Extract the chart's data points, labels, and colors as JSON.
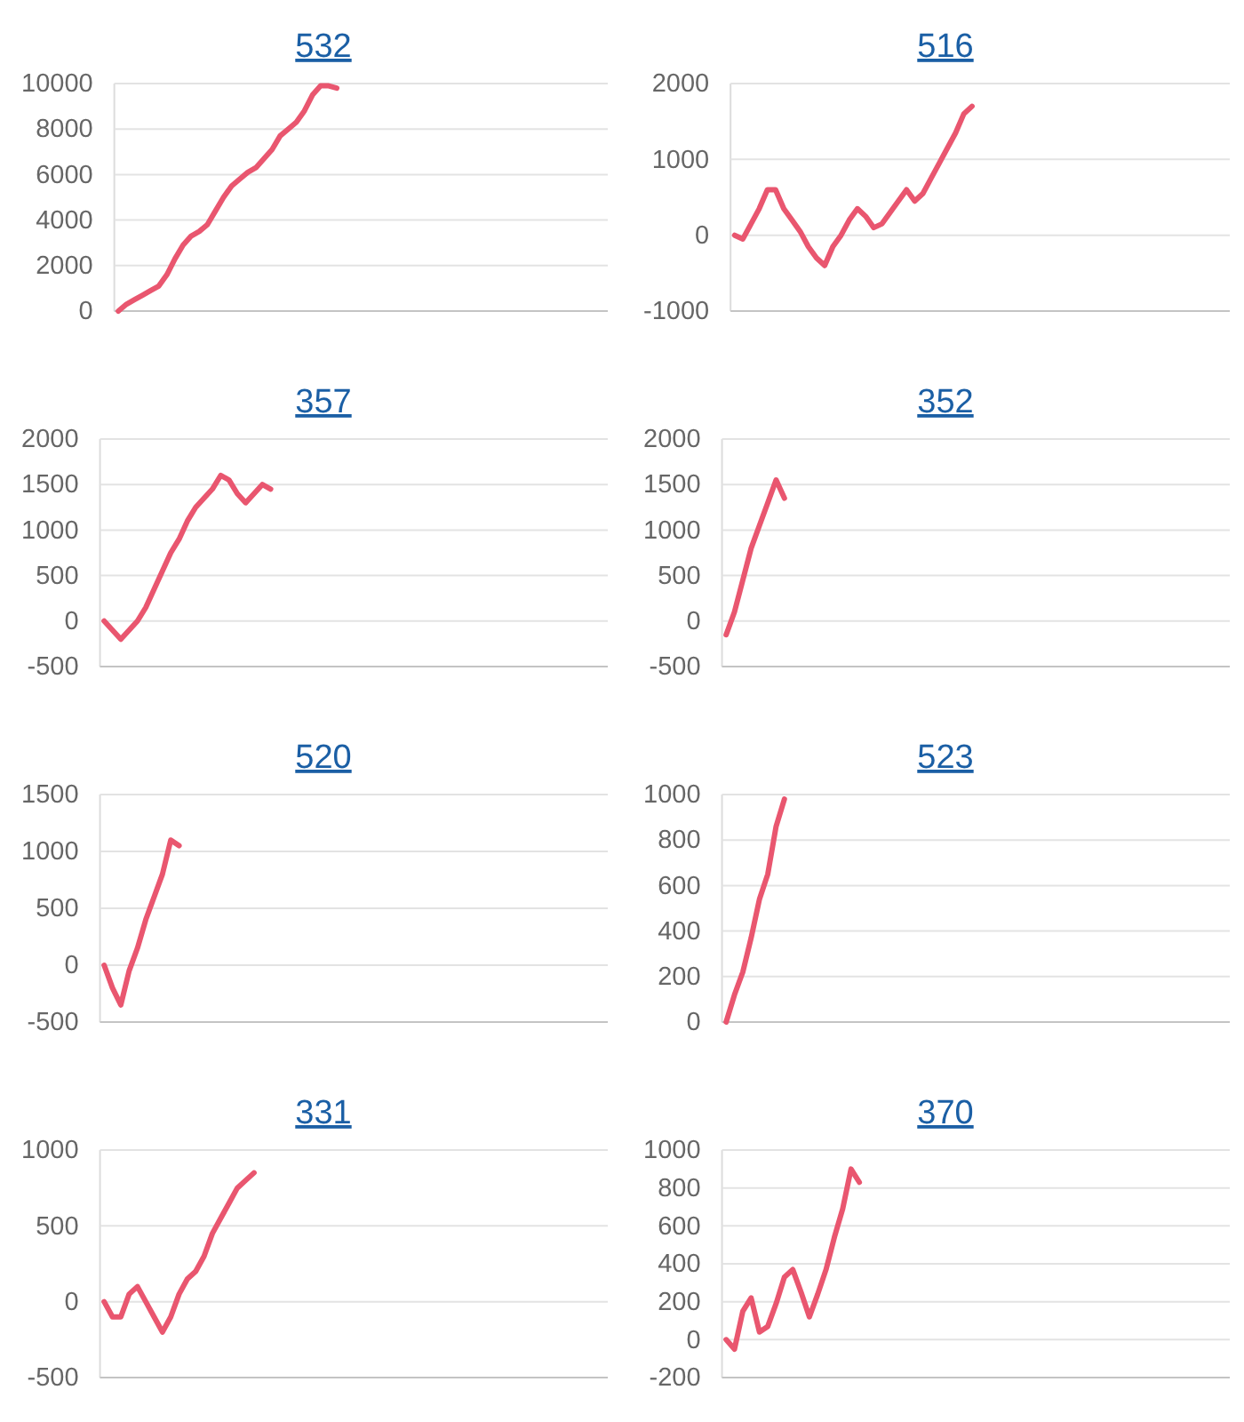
{
  "chart_data": [
    {
      "type": "line",
      "title": "532",
      "categories": [
        null,
        null,
        null,
        null,
        null,
        null,
        null,
        null,
        null,
        null,
        null,
        null,
        null,
        null,
        null,
        null,
        null,
        null,
        null,
        null,
        null,
        null,
        null,
        null,
        null,
        null,
        null,
        null,
        null,
        null,
        null,
        null,
        null,
        null,
        null,
        null,
        null,
        null,
        null,
        null,
        null,
        null,
        null,
        null,
        null,
        null,
        null,
        null,
        null,
        null,
        null,
        null,
        null,
        null,
        null,
        null,
        null,
        null,
        null,
        null,
        null
      ],
      "values": [
        0,
        300,
        500,
        700,
        900,
        1100,
        1600,
        2300,
        2900,
        3300,
        3500,
        3800,
        4400,
        5000,
        5500,
        5800,
        6100,
        6300,
        6700,
        7100,
        7700,
        8000,
        8300,
        8800,
        9500,
        9900,
        9900,
        9800,
        null,
        null,
        null,
        null,
        null,
        null,
        null,
        null,
        null,
        null,
        null,
        null,
        null,
        null,
        null,
        null,
        null,
        null,
        null,
        null,
        null,
        null,
        null,
        null,
        null,
        null,
        null,
        null,
        null,
        null,
        null,
        null,
        null
      ],
      "color": "#e9566f",
      "ylim": [
        0,
        10000
      ],
      "yticks": [
        0,
        2000,
        4000,
        6000,
        8000,
        10000
      ],
      "grid": "y",
      "tick_labels": "y"
    },
    {
      "type": "line",
      "title": "516",
      "categories": [
        null,
        null,
        null,
        null,
        null,
        null,
        null,
        null,
        null,
        null,
        null,
        null,
        null,
        null,
        null,
        null,
        null,
        null,
        null,
        null,
        null,
        null,
        null,
        null,
        null,
        null,
        null,
        null,
        null,
        null,
        null,
        null,
        null,
        null,
        null,
        null,
        null,
        null,
        null,
        null,
        null,
        null,
        null,
        null,
        null,
        null,
        null,
        null,
        null,
        null,
        null,
        null,
        null,
        null,
        null,
        null,
        null,
        null,
        null,
        null,
        null
      ],
      "values": [
        0,
        -50,
        150,
        350,
        600,
        600,
        350,
        200,
        50,
        -150,
        -300,
        -400,
        -150,
        0,
        200,
        350,
        250,
        100,
        150,
        300,
        450,
        600,
        450,
        550,
        750,
        950,
        1150,
        1350,
        1600,
        1700,
        null,
        null,
        null,
        null,
        null,
        null,
        null,
        null,
        null,
        null,
        null,
        null,
        null,
        null,
        null,
        null,
        null,
        null,
        null,
        null,
        null,
        null,
        null,
        null,
        null,
        null,
        null,
        null,
        null,
        null,
        null
      ],
      "color": "#e9566f",
      "ylim": [
        -1000,
        2000
      ],
      "yticks": [
        -1000,
        0,
        1000,
        2000
      ],
      "grid": "y",
      "tick_labels": "y"
    },
    {
      "type": "line",
      "title": "357",
      "categories": [
        null,
        null,
        null,
        null,
        null,
        null,
        null,
        null,
        null,
        null,
        null,
        null,
        null,
        null,
        null,
        null,
        null,
        null,
        null,
        null,
        null,
        null,
        null,
        null,
        null,
        null,
        null,
        null,
        null,
        null,
        null,
        null,
        null,
        null,
        null,
        null,
        null,
        null,
        null,
        null,
        null,
        null,
        null,
        null,
        null,
        null,
        null,
        null,
        null,
        null,
        null,
        null,
        null,
        null,
        null,
        null,
        null,
        null,
        null,
        null,
        null
      ],
      "values": [
        0,
        -100,
        -200,
        -100,
        0,
        150,
        350,
        550,
        750,
        900,
        1100,
        1250,
        1350,
        1450,
        1600,
        1550,
        1400,
        1300,
        1400,
        1500,
        1450,
        null,
        null,
        null,
        null,
        null,
        null,
        null,
        null,
        null,
        null,
        null,
        null,
        null,
        null,
        null,
        null,
        null,
        null,
        null,
        null,
        null,
        null,
        null,
        null,
        null,
        null,
        null,
        null,
        null,
        null,
        null,
        null,
        null,
        null,
        null,
        null,
        null,
        null,
        null,
        null
      ],
      "color": "#e9566f",
      "ylim": [
        -500,
        2000
      ],
      "yticks": [
        -500,
        0,
        500,
        1000,
        1500,
        2000
      ],
      "grid": "y",
      "tick_labels": "y"
    },
    {
      "type": "line",
      "title": "352",
      "categories": [
        null,
        null,
        null,
        null,
        null,
        null,
        null,
        null,
        null,
        null,
        null,
        null,
        null,
        null,
        null,
        null,
        null,
        null,
        null,
        null,
        null,
        null,
        null,
        null,
        null,
        null,
        null,
        null,
        null,
        null,
        null,
        null,
        null,
        null,
        null,
        null,
        null,
        null,
        null,
        null,
        null,
        null,
        null,
        null,
        null,
        null,
        null,
        null,
        null,
        null,
        null,
        null,
        null,
        null,
        null,
        null,
        null,
        null,
        null,
        null,
        null
      ],
      "values": [
        -150,
        100,
        450,
        800,
        1050,
        1300,
        1550,
        1350,
        null,
        null,
        null,
        null,
        null,
        null,
        null,
        null,
        null,
        null,
        null,
        null,
        null,
        null,
        null,
        null,
        null,
        null,
        null,
        null,
        null,
        null,
        null,
        null,
        null,
        null,
        null,
        null,
        null,
        null,
        null,
        null,
        null,
        null,
        null,
        null,
        null,
        null,
        null,
        null,
        null,
        null,
        null,
        null,
        null,
        null,
        null,
        null,
        null,
        null,
        null,
        null,
        null
      ],
      "color": "#e9566f",
      "ylim": [
        -500,
        2000
      ],
      "yticks": [
        -500,
        0,
        500,
        1000,
        1500,
        2000
      ],
      "grid": "y",
      "tick_labels": "y"
    },
    {
      "type": "line",
      "title": "520",
      "categories": [
        null,
        null,
        null,
        null,
        null,
        null,
        null,
        null,
        null,
        null,
        null,
        null,
        null,
        null,
        null,
        null,
        null,
        null,
        null,
        null,
        null,
        null,
        null,
        null,
        null,
        null,
        null,
        null,
        null,
        null,
        null,
        null,
        null,
        null,
        null,
        null,
        null,
        null,
        null,
        null,
        null,
        null,
        null,
        null,
        null,
        null,
        null,
        null,
        null,
        null,
        null,
        null,
        null,
        null,
        null,
        null,
        null,
        null,
        null,
        null,
        null
      ],
      "values": [
        0,
        -200,
        -350,
        -50,
        150,
        400,
        600,
        800,
        1100,
        1050,
        null,
        null,
        null,
        null,
        null,
        null,
        null,
        null,
        null,
        null,
        null,
        null,
        null,
        null,
        null,
        null,
        null,
        null,
        null,
        null,
        null,
        null,
        null,
        null,
        null,
        null,
        null,
        null,
        null,
        null,
        null,
        null,
        null,
        null,
        null,
        null,
        null,
        null,
        null,
        null,
        null,
        null,
        null,
        null,
        null,
        null,
        null,
        null,
        null,
        null,
        null
      ],
      "color": "#e9566f",
      "ylim": [
        -500,
        1500
      ],
      "yticks": [
        -500,
        0,
        500,
        1000,
        1500
      ],
      "grid": "y",
      "tick_labels": "y"
    },
    {
      "type": "line",
      "title": "523",
      "categories": [
        null,
        null,
        null,
        null,
        null,
        null,
        null,
        null,
        null,
        null,
        null,
        null,
        null,
        null,
        null,
        null,
        null,
        null,
        null,
        null,
        null,
        null,
        null,
        null,
        null,
        null,
        null,
        null,
        null,
        null,
        null,
        null,
        null,
        null,
        null,
        null,
        null,
        null,
        null,
        null,
        null,
        null,
        null,
        null,
        null,
        null,
        null,
        null,
        null,
        null,
        null,
        null,
        null,
        null,
        null,
        null,
        null,
        null,
        null,
        null,
        null
      ],
      "values": [
        0,
        120,
        220,
        370,
        540,
        650,
        860,
        980,
        null,
        null,
        null,
        null,
        null,
        null,
        null,
        null,
        null,
        null,
        null,
        null,
        null,
        null,
        null,
        null,
        null,
        null,
        null,
        null,
        null,
        null,
        null,
        null,
        null,
        null,
        null,
        null,
        null,
        null,
        null,
        null,
        null,
        null,
        null,
        null,
        null,
        null,
        null,
        null,
        null,
        null,
        null,
        null,
        null,
        null,
        null,
        null,
        null,
        null,
        null,
        null,
        null
      ],
      "color": "#e9566f",
      "ylim": [
        0,
        1000
      ],
      "yticks": [
        0,
        200,
        400,
        600,
        800,
        1000
      ],
      "grid": "y",
      "tick_labels": "y"
    },
    {
      "type": "line",
      "title": "331",
      "categories": [
        null,
        null,
        null,
        null,
        null,
        null,
        null,
        null,
        null,
        null,
        null,
        null,
        null,
        null,
        null,
        null,
        null,
        null,
        null,
        null,
        null,
        null,
        null,
        null,
        null,
        null,
        null,
        null,
        null,
        null,
        null,
        null,
        null,
        null,
        null,
        null,
        null,
        null,
        null,
        null,
        null,
        null,
        null,
        null,
        null,
        null,
        null,
        null,
        null,
        null,
        null,
        null,
        null,
        null,
        null,
        null,
        null,
        null,
        null,
        null,
        null
      ],
      "values": [
        0,
        -100,
        -100,
        50,
        100,
        0,
        -100,
        -200,
        -100,
        50,
        150,
        200,
        300,
        450,
        550,
        650,
        750,
        800,
        850,
        null,
        null,
        null,
        null,
        null,
        null,
        null,
        null,
        null,
        null,
        null,
        null,
        null,
        null,
        null,
        null,
        null,
        null,
        null,
        null,
        null,
        null,
        null,
        null,
        null,
        null,
        null,
        null,
        null,
        null,
        null,
        null,
        null,
        null,
        null,
        null,
        null,
        null,
        null,
        null,
        null,
        null
      ],
      "color": "#e9566f",
      "ylim": [
        -500,
        1000
      ],
      "yticks": [
        -500,
        0,
        500,
        1000
      ],
      "grid": "y",
      "tick_labels": "y"
    },
    {
      "type": "line",
      "title": "370",
      "categories": [
        null,
        null,
        null,
        null,
        null,
        null,
        null,
        null,
        null,
        null,
        null,
        null,
        null,
        null,
        null,
        null,
        null,
        null,
        null,
        null,
        null,
        null,
        null,
        null,
        null,
        null,
        null,
        null,
        null,
        null,
        null,
        null,
        null,
        null,
        null,
        null,
        null,
        null,
        null,
        null,
        null,
        null,
        null,
        null,
        null,
        null,
        null,
        null,
        null,
        null,
        null,
        null,
        null,
        null,
        null,
        null,
        null,
        null,
        null,
        null,
        null
      ],
      "values": [
        0,
        -50,
        150,
        220,
        40,
        70,
        190,
        330,
        370,
        250,
        120,
        240,
        370,
        540,
        690,
        900,
        830,
        null,
        null,
        null,
        null,
        null,
        null,
        null,
        null,
        null,
        null,
        null,
        null,
        null,
        null,
        null,
        null,
        null,
        null,
        null,
        null,
        null,
        null,
        null,
        null,
        null,
        null,
        null,
        null,
        null,
        null,
        null,
        null,
        null,
        null,
        null,
        null,
        null,
        null,
        null,
        null,
        null,
        null,
        null,
        null
      ],
      "color": "#e9566f",
      "ylim": [
        -200,
        1000
      ],
      "yticks": [
        -200,
        0,
        200,
        400,
        600,
        800,
        1000
      ],
      "grid": "y",
      "tick_labels": "y"
    }
  ]
}
